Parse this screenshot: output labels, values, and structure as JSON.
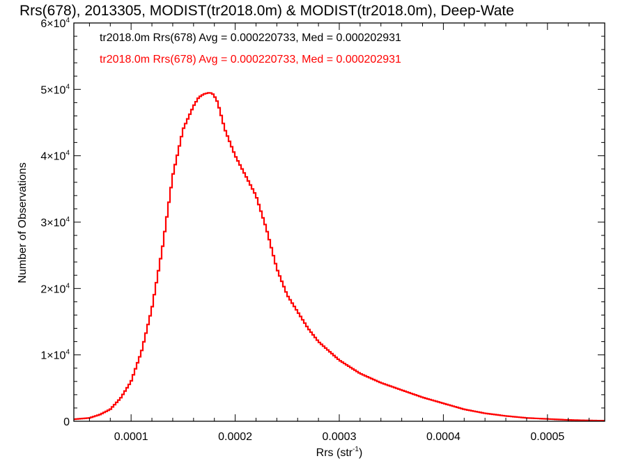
{
  "chart_data": {
    "type": "line",
    "title": "Rrs(678), 2013305, MODIST(tr2018.0m) & MODIST(tr2018.0m), Deep-Wate",
    "xlabel": "Rrs (str",
    "xlabel_exp": "-1",
    "xlabel_close": ")",
    "ylabel": "Number of Observations",
    "xlim": [
      4.5e-05,
      0.000555
    ],
    "ylim": [
      0,
      60000
    ],
    "xticks": [
      {
        "value": 0.0001,
        "label": "0.0001"
      },
      {
        "value": 0.0002,
        "label": "0.0002"
      },
      {
        "value": 0.0003,
        "label": "0.0003"
      },
      {
        "value": 0.0004,
        "label": "0.0004"
      },
      {
        "value": 0.0005,
        "label": "0.0005"
      }
    ],
    "yticks": [
      {
        "value": 0,
        "mant": "0",
        "exp": ""
      },
      {
        "value": 10000,
        "mant": "1×10",
        "exp": "4"
      },
      {
        "value": 20000,
        "mant": "2×10",
        "exp": "4"
      },
      {
        "value": 30000,
        "mant": "3×10",
        "exp": "4"
      },
      {
        "value": 40000,
        "mant": "4×10",
        "exp": "4"
      },
      {
        "value": 50000,
        "mant": "5×10",
        "exp": "4"
      },
      {
        "value": 60000,
        "mant": "6×10",
        "exp": "4"
      }
    ],
    "grid": false,
    "legend_position": "top-left",
    "legend": [
      {
        "text": "tr2018.0m Rrs(678) Avg = 0.000220733, Med = 0.000202931",
        "color": "#000000"
      },
      {
        "text": "tr2018.0m Rrs(678) Avg = 0.000220733, Med = 0.000202931",
        "color": "#ff0000"
      }
    ],
    "series": [
      {
        "style": "step",
        "color": "#ff0000",
        "x": [
          4.5e-05,
          6e-05,
          7e-05,
          8e-05,
          9e-05,
          0.0001,
          0.00011,
          0.00012,
          0.00013,
          0.00014,
          0.00015,
          0.00016,
          0.000165,
          0.00017,
          0.000175,
          0.000178,
          0.000182,
          0.000185,
          0.00019,
          0.000195,
          0.0002,
          0.00021,
          0.00022,
          0.00023,
          0.00024,
          0.00025,
          0.00026,
          0.00027,
          0.00028,
          0.0003,
          0.00032,
          0.00034,
          0.00036,
          0.00038,
          0.0004,
          0.00042,
          0.00044,
          0.00046,
          0.00048,
          0.0005,
          0.00052,
          0.00054,
          0.000555
        ],
        "y": [
          300,
          500,
          1000,
          1800,
          3500,
          6000,
          10500,
          17000,
          26000,
          37000,
          44000,
          47500,
          48800,
          49300,
          49500,
          49400,
          48500,
          47000,
          44000,
          42000,
          40000,
          37000,
          34000,
          29000,
          23000,
          19000,
          16500,
          14000,
          12000,
          9200,
          7200,
          5800,
          4700,
          3600,
          2700,
          1800,
          1200,
          800,
          500,
          350,
          200,
          120,
          80
        ]
      }
    ]
  }
}
